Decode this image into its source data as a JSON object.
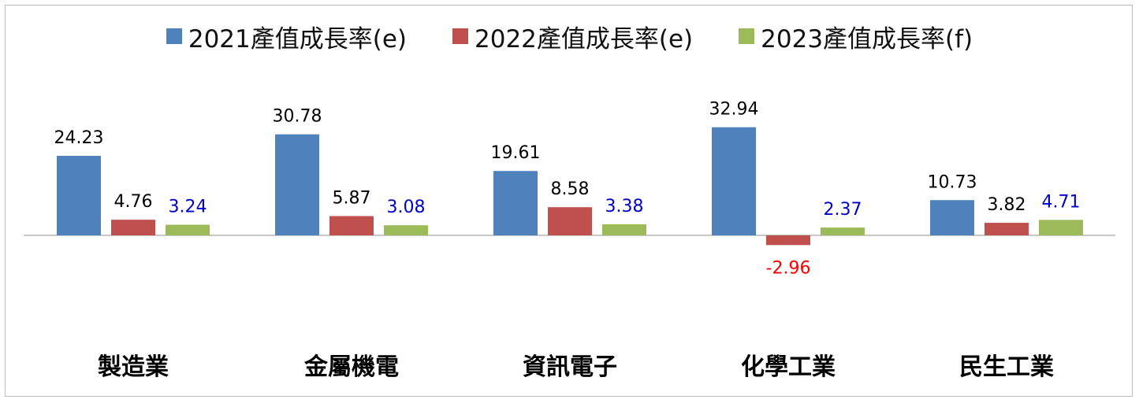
{
  "chart_data": {
    "type": "bar",
    "categories": [
      "製造業",
      "金屬機電",
      "資訊電子",
      "化學工業",
      "民生工業"
    ],
    "series": [
      {
        "name": "2021產值成長率(e)",
        "values": [
          24.23,
          30.78,
          19.61,
          32.94,
          10.73
        ],
        "color": "#4f81bd",
        "label_color": "#000000"
      },
      {
        "name": "2022產值成長率(e)",
        "values": [
          4.76,
          5.87,
          8.58,
          -2.96,
          3.82
        ],
        "color": "#c0504d",
        "label_color": "#000000",
        "negative_label_color": "#ff0000"
      },
      {
        "name": "2023產值成長率(f)",
        "values": [
          3.24,
          3.08,
          3.38,
          2.37,
          4.71
        ],
        "color": "#9bbb59",
        "label_color": "#0000cc"
      }
    ],
    "legend_position": "top",
    "grid": false,
    "xlabel": "",
    "ylabel": ""
  }
}
